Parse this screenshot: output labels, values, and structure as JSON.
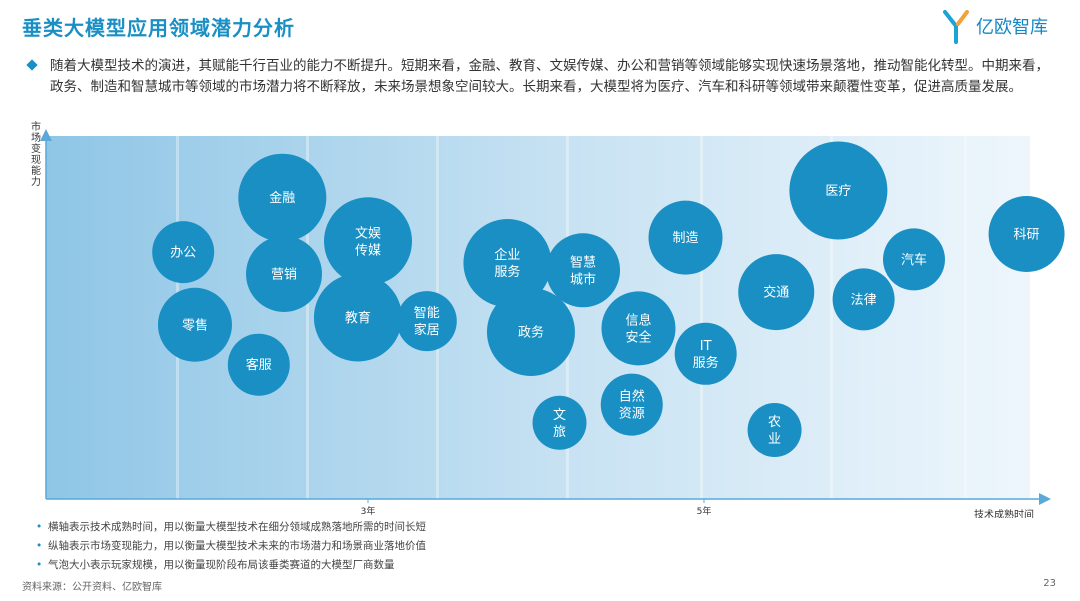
{
  "header": {
    "title": "垂类大模型应用领域潜力分析",
    "logo_text": "亿欧智库"
  },
  "intro": {
    "text": "随着大模型技术的演进，其赋能千行百业的能力不断提升。短期来看，金融、教育、文娱传媒、办公和营销等领域能够实现快速场景落地，推动智能化转型。中期来看，政务、制造和智慧城市等领域的市场潜力将不断释放，未来场景想象空间较大。长期来看，大模型将为医疗、汽车和科研等领域带来颠覆性变革，促进高质量发展。"
  },
  "chart_data": {
    "type": "scatter",
    "xlabel": "技术成熟时间",
    "ylabel": "市场变现能力",
    "x_ticks": [
      {
        "label": "3年",
        "value": 3
      },
      {
        "label": "5年",
        "value": 5
      }
    ],
    "xlim": [
      1,
      7
    ],
    "ylim": [
      0,
      10
    ],
    "size_meaning": "玩家规模",
    "points": [
      {
        "lines": [
          "金融"
        ],
        "x": 2.49,
        "y": 8.3,
        "size": 4.4
      },
      {
        "lines": [
          "办公"
        ],
        "x": 1.9,
        "y": 6.8,
        "size": 3.1
      },
      {
        "lines": [
          "文娱",
          "传媒"
        ],
        "x": 3.0,
        "y": 7.1,
        "size": 4.4
      },
      {
        "lines": [
          "营销"
        ],
        "x": 2.5,
        "y": 6.2,
        "size": 3.8
      },
      {
        "lines": [
          "零售"
        ],
        "x": 1.97,
        "y": 4.8,
        "size": 3.7
      },
      {
        "lines": [
          "教育"
        ],
        "x": 2.94,
        "y": 5.0,
        "size": 4.4
      },
      {
        "lines": [
          "智能",
          "家居"
        ],
        "x": 3.35,
        "y": 4.9,
        "size": 3.0
      },
      {
        "lines": [
          "客服"
        ],
        "x": 2.35,
        "y": 3.7,
        "size": 3.1
      },
      {
        "lines": [
          "企业",
          "服务"
        ],
        "x": 3.83,
        "y": 6.5,
        "size": 4.4
      },
      {
        "lines": [
          "政务"
        ],
        "x": 3.97,
        "y": 4.6,
        "size": 4.4
      },
      {
        "lines": [
          "智慧",
          "城市"
        ],
        "x": 4.28,
        "y": 6.3,
        "size": 3.7
      },
      {
        "lines": [
          "制造"
        ],
        "x": 4.89,
        "y": 7.2,
        "size": 3.7
      },
      {
        "lines": [
          "信息",
          "安全"
        ],
        "x": 4.61,
        "y": 4.7,
        "size": 3.7
      },
      {
        "lines": [
          "IT",
          "服务"
        ],
        "x": 5.01,
        "y": 4.0,
        "size": 3.1
      },
      {
        "lines": [
          "自然",
          "资源"
        ],
        "x": 4.57,
        "y": 2.6,
        "size": 3.1
      },
      {
        "lines": [
          "文",
          "旅"
        ],
        "x": 4.14,
        "y": 2.1,
        "size": 2.7
      },
      {
        "lines": [
          "交通"
        ],
        "x": 5.43,
        "y": 5.7,
        "size": 3.8
      },
      {
        "lines": [
          "法律"
        ],
        "x": 5.95,
        "y": 5.5,
        "size": 3.1
      },
      {
        "lines": [
          "医疗"
        ],
        "x": 5.8,
        "y": 8.5,
        "size": 4.9
      },
      {
        "lines": [
          "汽车"
        ],
        "x": 6.25,
        "y": 6.6,
        "size": 3.1
      },
      {
        "lines": [
          "科研"
        ],
        "x": 6.92,
        "y": 7.3,
        "size": 3.8
      },
      {
        "lines": [
          "农",
          "业"
        ],
        "x": 5.42,
        "y": 1.9,
        "size": 2.7
      }
    ]
  },
  "notes": [
    "横轴表示技术成熟时间，用以衡量大模型技术在细分领域成熟落地所需的时间长短",
    "纵轴表示市场变现能力，用以衡量大模型技术未来的市场潜力和场景商业落地价值",
    "气泡大小表示玩家规模，用以衡量现阶段布局该垂类赛道的大模型厂商数量"
  ],
  "footer": {
    "source": "资料来源：公开资料、亿欧智库",
    "page": "23"
  },
  "colors": {
    "accent": "#1a8fc4",
    "bubble": "#1a8fc4",
    "axis": "#5aa9d9"
  }
}
